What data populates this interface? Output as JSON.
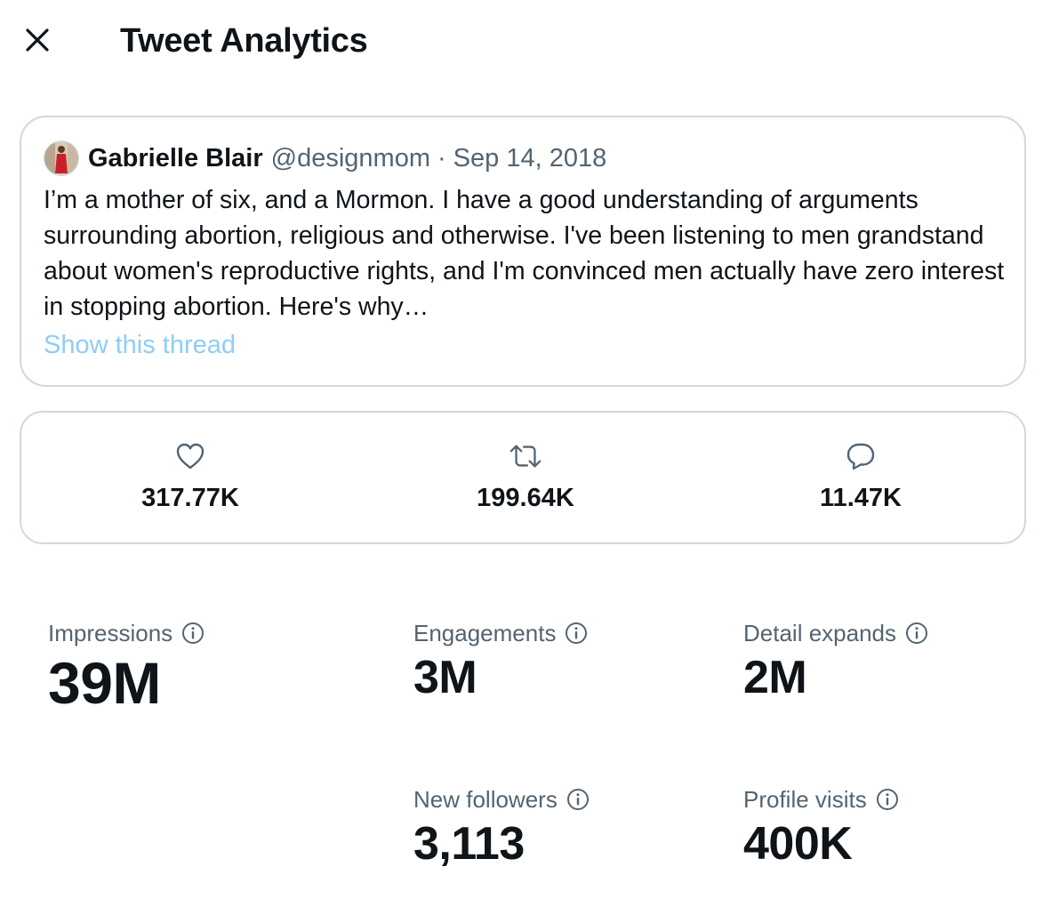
{
  "header": {
    "title": "Tweet Analytics",
    "close_icon": "close-icon"
  },
  "tweet": {
    "author_name": "Gabrielle Blair",
    "author_handle": "@designmom",
    "separator": "·",
    "date": "Sep 14, 2018",
    "text": "I’m a mother of six, and a Mormon. I have a good understanding of arguments surrounding abortion, religious and otherwise. I've been listening to men grandstand about women's reproductive rights, and I'm convinced men actually have zero interest in stopping abortion. Here's why…",
    "thread_link": "Show this thread"
  },
  "counts": [
    {
      "icon": "heart-icon",
      "value": "317.77K"
    },
    {
      "icon": "retweet-icon",
      "value": "199.64K"
    },
    {
      "icon": "reply-icon",
      "value": "11.47K"
    }
  ],
  "metrics": {
    "impressions": {
      "label": "Impressions",
      "value": "39M"
    },
    "engagements": {
      "label": "Engagements",
      "value": "3M"
    },
    "detail_expands": {
      "label": "Detail expands",
      "value": "2M"
    },
    "new_followers": {
      "label": "New followers",
      "value": "3,113"
    },
    "profile_visits": {
      "label": "Profile visits",
      "value": "400K"
    }
  },
  "colors": {
    "text_primary": "#0f1419",
    "text_secondary": "#536471",
    "link_faded": "#8ecdf8",
    "border": "#cfd9de"
  }
}
